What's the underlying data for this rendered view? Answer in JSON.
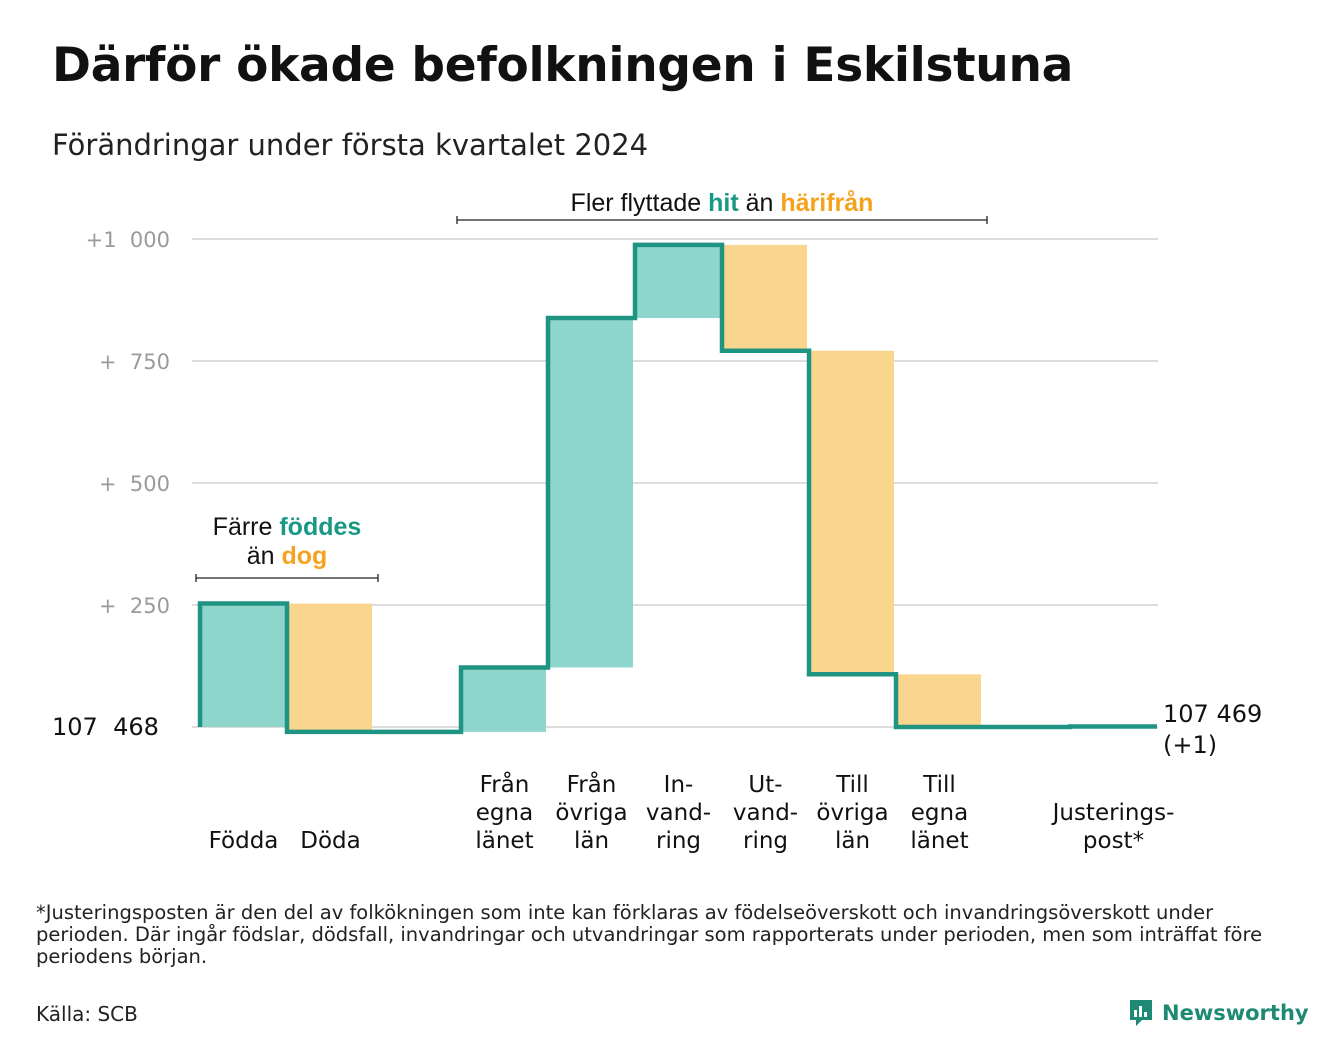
{
  "title": "Därför ökade befolkningen i Eskilstuna",
  "subtitle": "Förändringar under första kvartalet 2024",
  "colors": {
    "increase": "#8ed5cb",
    "decrease": "#f9d58e",
    "line": "#1f9483",
    "grid": "#dddddd",
    "teal_text": "#1a9886",
    "orange_text": "#f5a31f"
  },
  "chart_data": {
    "type": "waterfall",
    "baseline_label": "107  468",
    "start_value": 107468,
    "end_label": [
      "107 469",
      "(+1)"
    ],
    "y_tick_labels": [
      "+1  000",
      "+  750",
      "+  500",
      "+  250"
    ],
    "y_ticks": [
      1000,
      750,
      500,
      250
    ],
    "ylim": [
      -30,
      1020
    ],
    "grid": true,
    "steps": [
      {
        "label": [
          "Födda"
        ],
        "change": 253,
        "kind": "increase"
      },
      {
        "label": [
          "Döda"
        ],
        "change": -263,
        "kind": "decrease"
      },
      {
        "label": [
          ""
        ],
        "change": 0,
        "kind": "flat"
      },
      {
        "label": [
          "Från",
          "egna",
          "länet"
        ],
        "change": 132,
        "kind": "increase"
      },
      {
        "label": [
          "Från",
          "övriga",
          "län"
        ],
        "change": 716,
        "kind": "increase"
      },
      {
        "label": [
          "In-",
          "vand-",
          "ring"
        ],
        "change": 150,
        "kind": "increase"
      },
      {
        "label": [
          "Ut-",
          "vand-",
          "ring"
        ],
        "change": -217,
        "kind": "decrease"
      },
      {
        "label": [
          "Till",
          "övriga",
          "län"
        ],
        "change": -663,
        "kind": "decrease"
      },
      {
        "label": [
          "Till",
          "egna",
          "länet"
        ],
        "change": -108,
        "kind": "decrease"
      },
      {
        "label": [
          ""
        ],
        "change": 0,
        "kind": "flat"
      },
      {
        "label": [
          "Justerings-",
          "post*"
        ],
        "change": 1,
        "kind": "adjustment"
      }
    ],
    "annotations": [
      {
        "lines": [
          [
            {
              "t": "Färre ",
              "c": "dark"
            },
            {
              "t": "föddes",
              "c": "teal"
            }
          ],
          [
            {
              "t": "än ",
              "c": "dark"
            },
            {
              "t": "dog",
              "c": "orange"
            }
          ]
        ]
      },
      {
        "lines": [
          [
            {
              "t": "Fler flyttade ",
              "c": "dark"
            },
            {
              "t": "hit",
              "c": "teal"
            },
            {
              "t": " än ",
              "c": "dark"
            },
            {
              "t": "härifrån",
              "c": "orange"
            }
          ]
        ]
      }
    ]
  },
  "footnote": "*Justeringsposten är den del av folkökningen som inte kan förklaras av födelseöverskott och invandringsöverskott under perioden. Där ingår födslar, dödsfall, invandringar och utvandringar som rapporterats under perioden, men som inträffat före periodens början.",
  "source": "Källa: SCB",
  "brand": {
    "name": "Newsworthy",
    "icon": "newsworthy-logo-icon"
  }
}
